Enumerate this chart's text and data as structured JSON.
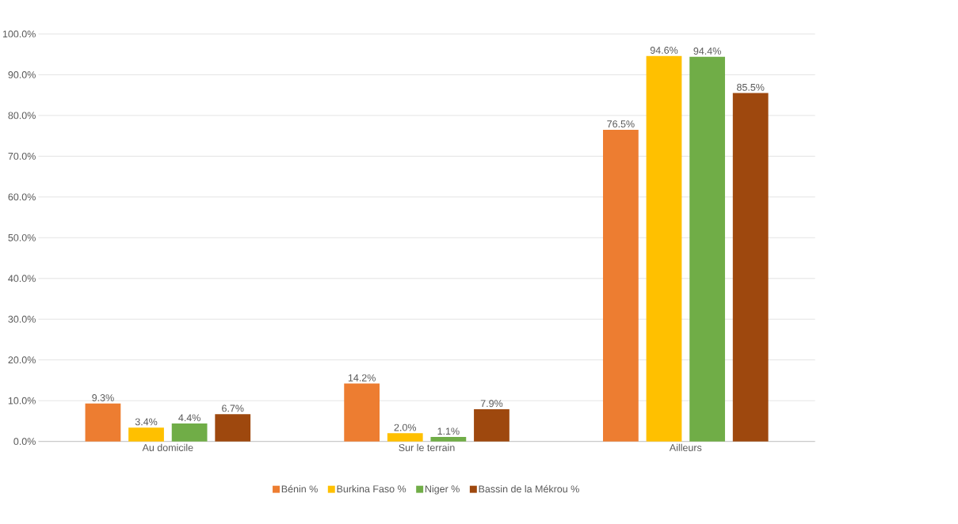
{
  "chart_data": {
    "type": "bar",
    "categories": [
      "Au domicile",
      "Sur le terrain",
      "Ailleurs"
    ],
    "series": [
      {
        "name": "Bénin %",
        "color": "#ed7d31",
        "values": [
          9.3,
          14.2,
          76.5
        ],
        "value_labels": [
          "9.3%",
          "14.2%",
          "76.5%"
        ]
      },
      {
        "name": "Burkina Faso %",
        "color": "#ffc000",
        "values": [
          3.4,
          2.0,
          94.6
        ],
        "value_labels": [
          "3.4%",
          "2.0%",
          "94.6%"
        ]
      },
      {
        "name": "Niger %",
        "color": "#70ad47",
        "values": [
          4.4,
          1.1,
          94.4
        ],
        "value_labels": [
          "4.4%",
          "1.1%",
          "94.4%"
        ]
      },
      {
        "name": "Bassin de la Mékrou %",
        "color": "#9e480e",
        "values": [
          6.7,
          7.9,
          85.5
        ],
        "value_labels": [
          "6.7%",
          "7.9%",
          "85.5%"
        ]
      }
    ],
    "ylim": [
      0,
      100
    ],
    "yticks": [
      {
        "value": 0,
        "label": "0.0%"
      },
      {
        "value": 10,
        "label": "10.0%"
      },
      {
        "value": 20,
        "label": "20.0%"
      },
      {
        "value": 30,
        "label": "30.0%"
      },
      {
        "value": 40,
        "label": "40.0%"
      },
      {
        "value": 50,
        "label": "50.0%"
      },
      {
        "value": 60,
        "label": "60.0%"
      },
      {
        "value": 70,
        "label": "70.0%"
      },
      {
        "value": 80,
        "label": "80.0%"
      },
      {
        "value": 90,
        "label": "90.0%"
      },
      {
        "value": 100,
        "label": "100.0%"
      }
    ],
    "grid": "y",
    "legend": "bottom"
  }
}
